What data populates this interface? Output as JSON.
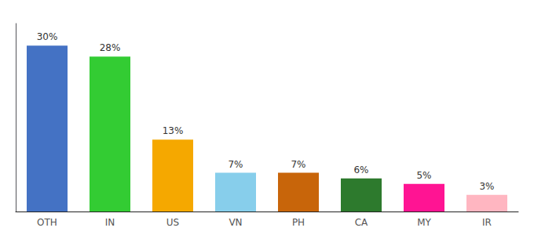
{
  "chart_data": {
    "type": "bar",
    "categories": [
      "OTH",
      "IN",
      "US",
      "VN",
      "PH",
      "CA",
      "MY",
      "IR"
    ],
    "values": [
      30,
      28,
      13,
      7,
      7,
      6,
      5,
      3
    ],
    "value_labels": [
      "30%",
      "28%",
      "13%",
      "7%",
      "7%",
      "6%",
      "5%",
      "3%"
    ],
    "colors": [
      "#4472c4",
      "#33cc33",
      "#f5a800",
      "#87ceeb",
      "#c8650a",
      "#2d7a2d",
      "#ff1493",
      "#ffb6c1"
    ],
    "ylim": [
      0,
      34
    ],
    "data_labels": true,
    "tick_labels": "x",
    "grid": false
  }
}
